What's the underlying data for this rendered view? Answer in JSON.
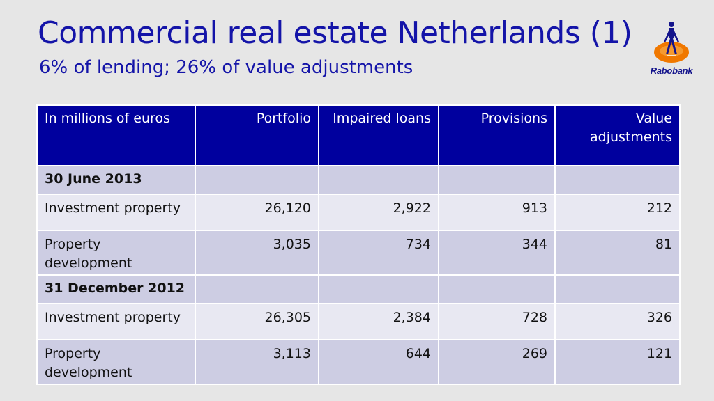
{
  "slide": {
    "title": "Commercial real estate Netherlands (1)",
    "subtitle": "6% of lending; 26% of value adjustments"
  },
  "logo": {
    "text": "Rabobank",
    "icon": "rabobank-figure-icon",
    "colors": {
      "orange": "#f07800",
      "blue": "#14148c"
    }
  },
  "colors": {
    "title": "#1414a8",
    "header_bg": "#00009e",
    "row_dark": "#cdcde3",
    "row_light": "#e8e8f2",
    "background": "#e6e6e6"
  },
  "table": {
    "headers": [
      "In millions of euros",
      "Portfolio",
      "Impaired loans",
      "Provisions",
      "Value adjustments"
    ],
    "sections": [
      {
        "label": "30 June 2013",
        "rows": [
          {
            "label": "Investment property",
            "values": [
              "26,120",
              "2,922",
              "913",
              "212"
            ]
          },
          {
            "label": "Property development",
            "values": [
              "3,035",
              "734",
              "344",
              "81"
            ]
          }
        ]
      },
      {
        "label": "31 December 2012",
        "rows": [
          {
            "label": "Investment property",
            "values": [
              "26,305",
              "2,384",
              "728",
              "326"
            ]
          },
          {
            "label": "Property development",
            "values": [
              "3,113",
              "644",
              "269",
              "121"
            ]
          }
        ]
      }
    ]
  }
}
